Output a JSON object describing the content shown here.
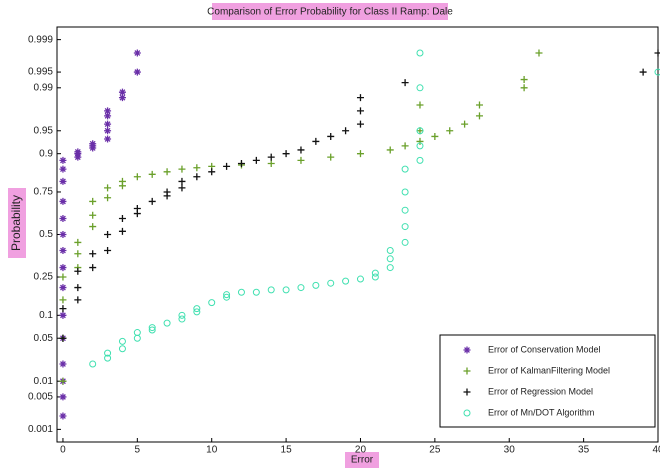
{
  "chart_data": {
    "type": "scatter",
    "title": "Comparison of Error Probability for Class II Ramp: Dale",
    "x_label": "Error",
    "y_label": "Probability",
    "y_scale": "probability",
    "xlim": [
      -0.4,
      40
    ],
    "xticks": [
      0,
      5,
      10,
      15,
      20,
      25,
      30,
      35,
      40
    ],
    "ylim": [
      0.0005,
      0.9995
    ],
    "yticks": [
      0.001,
      0.005,
      0.01,
      0.05,
      0.1,
      0.25,
      0.5,
      0.75,
      0.9,
      0.95,
      0.99,
      0.995,
      0.999
    ],
    "legend": "lower right",
    "series": [
      {
        "name": "Error of Conservation Model",
        "color": "#6a2fa8",
        "marker": "star",
        "x": [
          0,
          0,
          0,
          0,
          0,
          0,
          0,
          0,
          0,
          0,
          0,
          0,
          0,
          0,
          0,
          1,
          1,
          1,
          2,
          2,
          2,
          3,
          3,
          3,
          3,
          3,
          4,
          4,
          5,
          5
        ],
        "values": [
          0.002,
          0.005,
          0.01,
          0.02,
          0.05,
          0.1,
          0.2,
          0.3,
          0.4,
          0.5,
          0.6,
          0.7,
          0.8,
          0.85,
          0.88,
          0.89,
          0.9,
          0.905,
          0.915,
          0.92,
          0.925,
          0.935,
          0.95,
          0.96,
          0.97,
          0.975,
          0.985,
          0.988,
          0.995,
          0.998
        ]
      },
      {
        "name": "Error of KalmanFiltering Model",
        "color": "#6aa02a",
        "marker": "plus",
        "x": [
          0,
          0,
          0,
          0,
          1,
          1,
          1,
          2,
          2,
          2,
          3,
          3,
          4,
          4,
          5,
          6,
          7,
          8,
          9,
          10,
          12,
          14,
          16,
          18,
          20,
          22,
          23,
          24,
          24,
          24,
          25,
          26,
          27,
          28,
          28,
          31,
          31,
          32
        ],
        "values": [
          0.01,
          0.05,
          0.15,
          0.25,
          0.3,
          0.38,
          0.45,
          0.55,
          0.62,
          0.7,
          0.72,
          0.77,
          0.78,
          0.8,
          0.82,
          0.83,
          0.84,
          0.85,
          0.855,
          0.86,
          0.865,
          0.87,
          0.88,
          0.89,
          0.9,
          0.91,
          0.92,
          0.93,
          0.95,
          0.98,
          0.94,
          0.95,
          0.96,
          0.97,
          0.98,
          0.99,
          0.993,
          0.998
        ]
      },
      {
        "name": "Error of Regression Model",
        "color": "#111111",
        "marker": "plus",
        "x": [
          0,
          0,
          1,
          1,
          1,
          2,
          2,
          3,
          3,
          4,
          4,
          5,
          5,
          6,
          7,
          7,
          8,
          8,
          9,
          10,
          11,
          12,
          13,
          14,
          15,
          16,
          17,
          18,
          19,
          20,
          20,
          20,
          23,
          39,
          40
        ],
        "values": [
          0.05,
          0.12,
          0.15,
          0.2,
          0.28,
          0.3,
          0.38,
          0.4,
          0.5,
          0.52,
          0.6,
          0.63,
          0.66,
          0.7,
          0.73,
          0.75,
          0.77,
          0.8,
          0.82,
          0.84,
          0.86,
          0.87,
          0.88,
          0.89,
          0.9,
          0.91,
          0.93,
          0.94,
          0.95,
          0.96,
          0.975,
          0.985,
          0.992,
          0.995,
          0.998
        ]
      },
      {
        "name": "Error of Mn/DOT Algorithm",
        "color": "#40e0b0",
        "marker": "circle",
        "x": [
          2,
          3,
          3,
          4,
          4,
          5,
          5,
          6,
          6,
          7,
          8,
          8,
          9,
          9,
          10,
          11,
          11,
          12,
          13,
          14,
          15,
          16,
          17,
          18,
          19,
          20,
          21,
          21,
          22,
          22,
          22,
          23,
          23,
          23,
          23,
          23,
          24,
          24,
          24,
          24,
          24,
          40
        ],
        "values": [
          0.02,
          0.025,
          0.03,
          0.035,
          0.045,
          0.05,
          0.06,
          0.065,
          0.07,
          0.08,
          0.09,
          0.1,
          0.11,
          0.12,
          0.14,
          0.16,
          0.17,
          0.18,
          0.18,
          0.19,
          0.19,
          0.2,
          0.21,
          0.22,
          0.23,
          0.24,
          0.25,
          0.27,
          0.3,
          0.35,
          0.4,
          0.45,
          0.55,
          0.65,
          0.75,
          0.85,
          0.88,
          0.92,
          0.95,
          0.99,
          0.998,
          0.995
        ]
      }
    ]
  }
}
